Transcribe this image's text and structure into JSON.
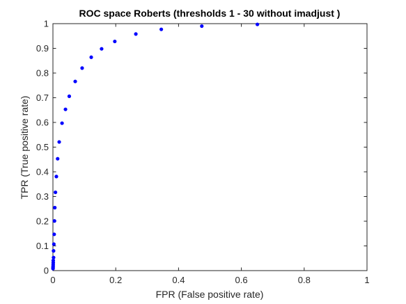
{
  "chart_data": {
    "type": "scatter",
    "title": "ROC space Roberts (thresholds 1 - 30  without imadjust )",
    "xlabel": "FPR (False positive rate)",
    "ylabel": "TPR (True positive rate)",
    "xlim": [
      0,
      1
    ],
    "ylim": [
      0,
      1
    ],
    "xticks": [
      "0",
      "0.2",
      "0.4",
      "0.6",
      "0.8",
      "1"
    ],
    "yticks": [
      "0",
      "0.1",
      "0.2",
      "0.3",
      "0.4",
      "0.5",
      "0.6",
      "0.7",
      "0.8",
      "0.9",
      "1"
    ],
    "grid": false,
    "marker_color": "#0000ff",
    "points": [
      {
        "x": 0.651,
        "y": 0.997
      },
      {
        "x": 0.474,
        "y": 0.99
      },
      {
        "x": 0.345,
        "y": 0.977
      },
      {
        "x": 0.264,
        "y": 0.958
      },
      {
        "x": 0.197,
        "y": 0.928
      },
      {
        "x": 0.155,
        "y": 0.898
      },
      {
        "x": 0.122,
        "y": 0.864
      },
      {
        "x": 0.093,
        "y": 0.82
      },
      {
        "x": 0.071,
        "y": 0.766
      },
      {
        "x": 0.052,
        "y": 0.706
      },
      {
        "x": 0.04,
        "y": 0.653
      },
      {
        "x": 0.029,
        "y": 0.597
      },
      {
        "x": 0.02,
        "y": 0.521
      },
      {
        "x": 0.015,
        "y": 0.453
      },
      {
        "x": 0.011,
        "y": 0.381
      },
      {
        "x": 0.008,
        "y": 0.317
      },
      {
        "x": 0.006,
        "y": 0.255
      },
      {
        "x": 0.005,
        "y": 0.201
      },
      {
        "x": 0.004,
        "y": 0.147
      },
      {
        "x": 0.003,
        "y": 0.107
      },
      {
        "x": 0.002,
        "y": 0.08
      },
      {
        "x": 0.002,
        "y": 0.053
      },
      {
        "x": 0.001,
        "y": 0.041
      },
      {
        "x": 0.001,
        "y": 0.032
      },
      {
        "x": 0.0008,
        "y": 0.024
      },
      {
        "x": 0.0006,
        "y": 0.017
      },
      {
        "x": 0.0004,
        "y": 0.012
      },
      {
        "x": 0.0003,
        "y": 0.008
      }
    ]
  }
}
